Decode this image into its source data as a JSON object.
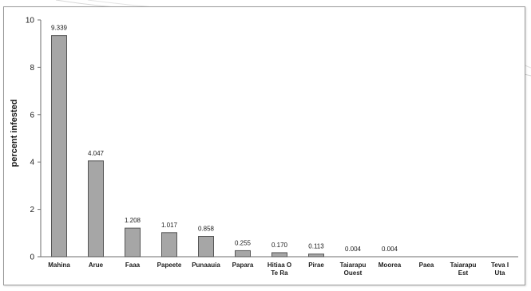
{
  "chart_data": {
    "type": "bar",
    "ylabel": "percent infested",
    "xlabel": "",
    "title": "",
    "ylim": [
      0,
      10
    ],
    "yticks": [
      0,
      2,
      4,
      6,
      8,
      10
    ],
    "grid": false,
    "legend": "none",
    "bar_color": "#a6a6a6",
    "bar_edge_color": "#555555",
    "categories": [
      [
        "Mahina"
      ],
      [
        "Arue"
      ],
      [
        "Faaa"
      ],
      [
        "Papeete"
      ],
      [
        "Punaauia"
      ],
      [
        "Papara"
      ],
      [
        "Hitiaa O",
        "Te Ra"
      ],
      [
        "Pirae"
      ],
      [
        "Taiarapu",
        "Ouest"
      ],
      [
        "Moorea"
      ],
      [
        "Paea"
      ],
      [
        "Taiarapu",
        "Est"
      ],
      [
        "Teva I",
        "Uta"
      ]
    ],
    "values": [
      9.339,
      4.047,
      1.208,
      1.017,
      0.858,
      0.255,
      0.17,
      0.113,
      0.004,
      0.004,
      0,
      0,
      0
    ],
    "value_labels": [
      "9.339",
      "4.047",
      "1.208",
      "1.017",
      "0.858",
      "0.255",
      "0.170",
      "0.113",
      "0.004",
      "0.004",
      "",
      "",
      ""
    ]
  }
}
